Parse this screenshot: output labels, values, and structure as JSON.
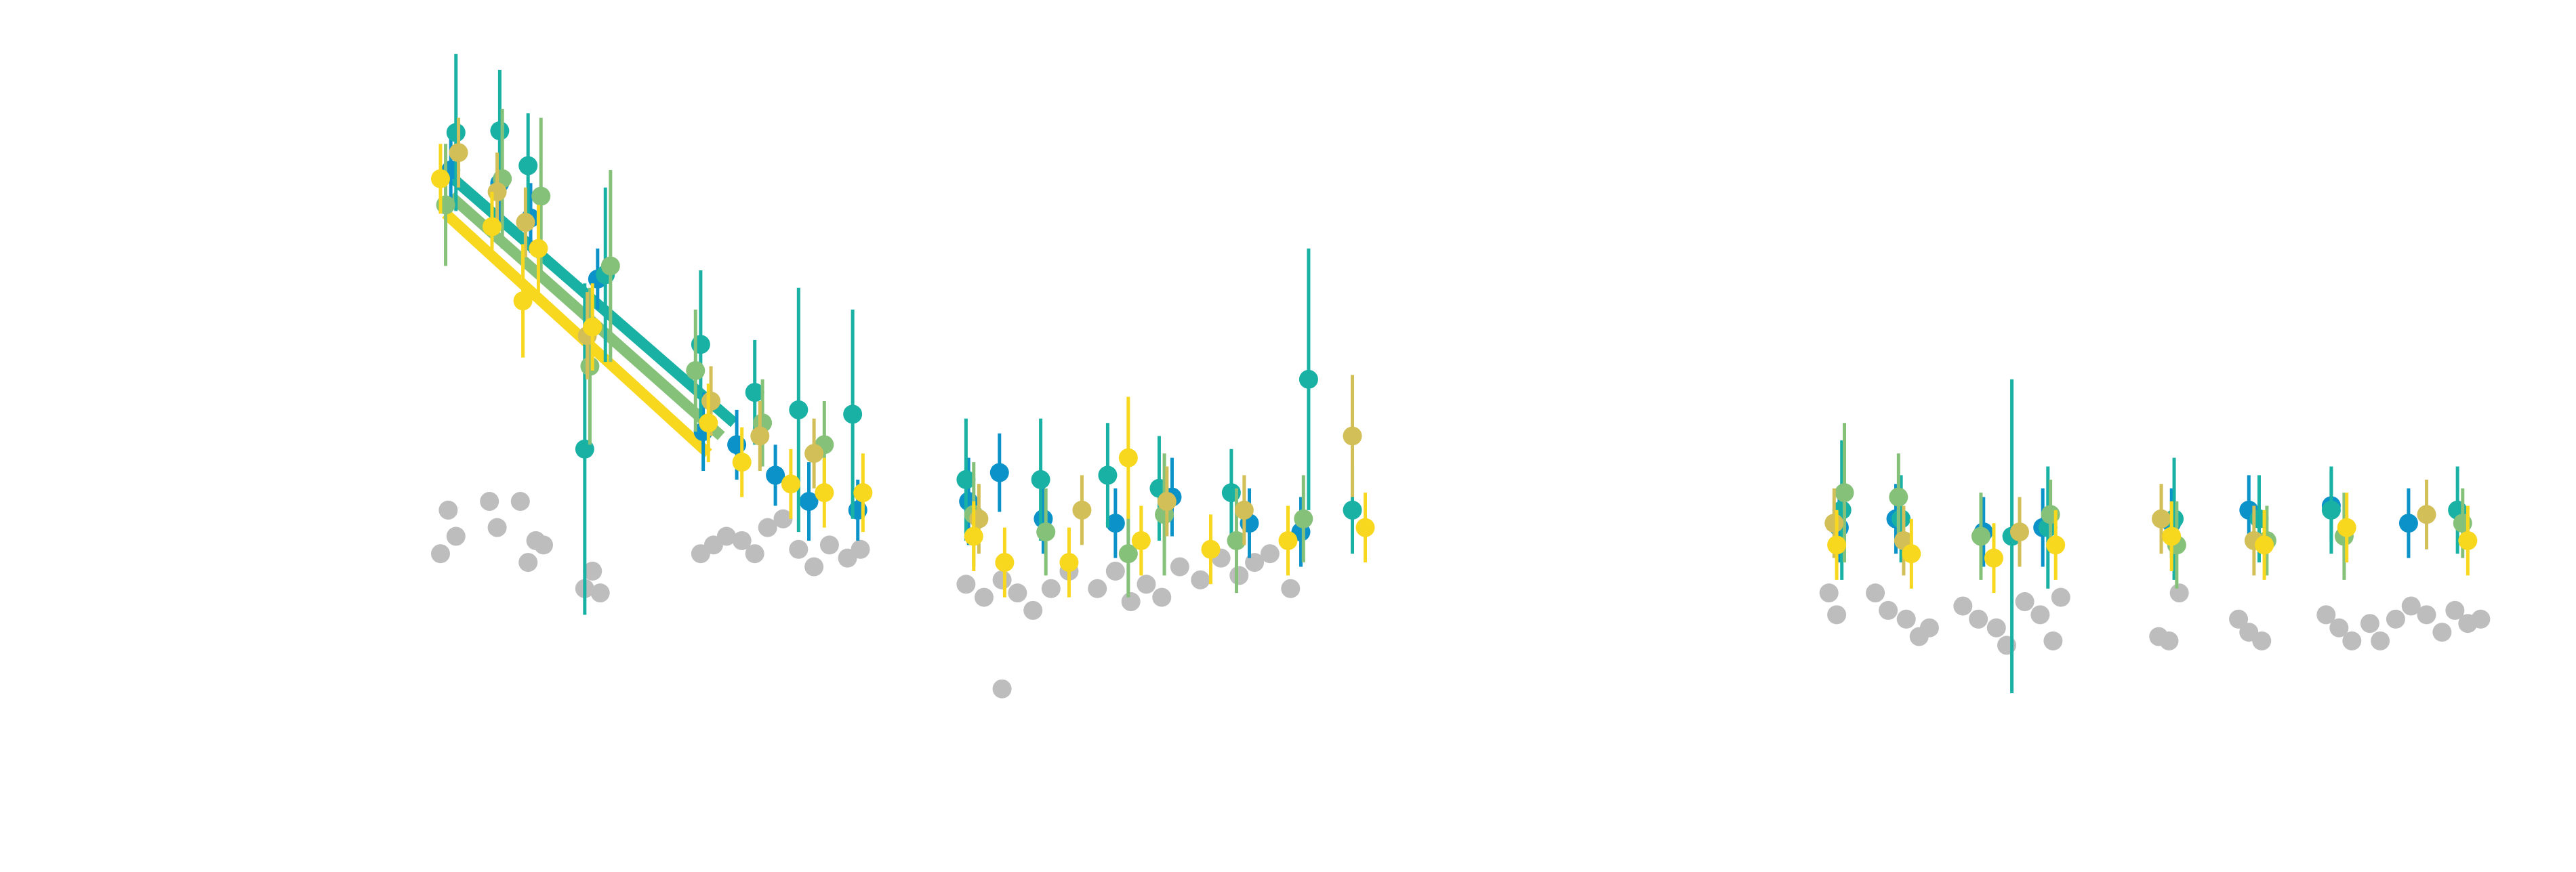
{
  "colors": {
    "background": "#ffffff",
    "excluded": "#bdbdbd",
    "series": [
      "#0a92c9",
      "#1ab1a5",
      "#86c17a",
      "#d2bf58",
      "#f8d81f"
    ]
  },
  "chart_data": {
    "type": "scatter",
    "title": "",
    "xlabel": "",
    "ylabel": "",
    "axes_visible": false,
    "grid": false,
    "legend": "none",
    "xlim": [
      0,
      100
    ],
    "ylim": [
      0,
      100
    ],
    "series": [
      {
        "values": [
          {
            "x": 17.5,
            "y": 80.5,
            "err": 4.0
          },
          {
            "x": 19.4,
            "y": 79.0,
            "err": 5.0
          },
          {
            "x": 20.6,
            "y": 75.0,
            "err": 4.0
          },
          {
            "x": 23.2,
            "y": 68.0,
            "err": 3.5
          },
          {
            "x": 27.3,
            "y": 50.5,
            "err": 4.5
          },
          {
            "x": 28.6,
            "y": 49.0,
            "err": 4.0
          },
          {
            "x": 30.1,
            "y": 45.5,
            "err": 3.5
          },
          {
            "x": 31.4,
            "y": 42.5,
            "err": 4.5
          },
          {
            "x": 33.3,
            "y": 41.5,
            "err": 3.5
          },
          {
            "x": 37.6,
            "y": 42.5,
            "err": 5.0
          },
          {
            "x": 38.8,
            "y": 45.8,
            "err": 4.5
          },
          {
            "x": 40.5,
            "y": 40.5,
            "err": 4.0
          },
          {
            "x": 43.3,
            "y": 40.0,
            "err": 4.0
          },
          {
            "x": 45.5,
            "y": 43.0,
            "err": 4.5
          },
          {
            "x": 48.5,
            "y": 40.0,
            "err": 4.0
          },
          {
            "x": 50.5,
            "y": 39.0,
            "err": 4.0
          },
          {
            "x": 71.4,
            "y": 39.5,
            "err": 4.0
          },
          {
            "x": 73.6,
            "y": 40.5,
            "err": 4.0
          },
          {
            "x": 77.0,
            "y": 39.0,
            "err": 4.0
          },
          {
            "x": 79.3,
            "y": 39.5,
            "err": 4.5
          },
          {
            "x": 84.3,
            "y": 40.0,
            "err": 4.0
          },
          {
            "x": 87.3,
            "y": 41.5,
            "err": 4.0
          },
          {
            "x": 90.5,
            "y": 42.0,
            "err": 4.0
          },
          {
            "x": 93.5,
            "y": 40.0,
            "err": 4.0
          }
        ]
      },
      {
        "values": [
          {
            "x": 17.7,
            "y": 84.8,
            "err": 9.0
          },
          {
            "x": 19.4,
            "y": 85.0,
            "err": 7.0
          },
          {
            "x": 20.5,
            "y": 81.0,
            "err": 6.0
          },
          {
            "x": 22.7,
            "y": 48.5,
            "err": 19.0
          },
          {
            "x": 23.5,
            "y": 68.5,
            "err": 10.0
          },
          {
            "x": 27.2,
            "y": 60.5,
            "err": 8.5
          },
          {
            "x": 29.3,
            "y": 55.0,
            "err": 6.0
          },
          {
            "x": 31.0,
            "y": 53.0,
            "err": 14.0
          },
          {
            "x": 33.1,
            "y": 52.5,
            "err": 12.0
          },
          {
            "x": 37.5,
            "y": 45.0,
            "err": 7.0
          },
          {
            "x": 40.4,
            "y": 45.0,
            "err": 7.0
          },
          {
            "x": 43.0,
            "y": 45.5,
            "err": 6.0
          },
          {
            "x": 45.0,
            "y": 44.0,
            "err": 6.0
          },
          {
            "x": 47.8,
            "y": 43.5,
            "err": 5.0
          },
          {
            "x": 50.8,
            "y": 56.5,
            "err": 15.0
          },
          {
            "x": 52.5,
            "y": 41.5,
            "err": 5.0
          },
          {
            "x": 71.5,
            "y": 41.5,
            "err": 8.0
          },
          {
            "x": 73.8,
            "y": 40.5,
            "err": 5.0
          },
          {
            "x": 78.1,
            "y": 38.5,
            "err": 18.0
          },
          {
            "x": 79.5,
            "y": 39.5,
            "err": 7.0
          },
          {
            "x": 84.4,
            "y": 40.5,
            "err": 7.0
          },
          {
            "x": 87.7,
            "y": 40.5,
            "err": 5.0
          },
          {
            "x": 90.5,
            "y": 41.5,
            "err": 5.0
          },
          {
            "x": 95.4,
            "y": 41.5,
            "err": 5.0
          }
        ]
      },
      {
        "values": [
          {
            "x": 17.3,
            "y": 76.5,
            "err": 7.0
          },
          {
            "x": 19.5,
            "y": 79.5,
            "err": 8.0
          },
          {
            "x": 21.0,
            "y": 77.5,
            "err": 9.0
          },
          {
            "x": 22.9,
            "y": 58.0,
            "err": 9.0
          },
          {
            "x": 23.7,
            "y": 69.5,
            "err": 11.0
          },
          {
            "x": 27.0,
            "y": 57.5,
            "err": 7.0
          },
          {
            "x": 29.6,
            "y": 51.5,
            "err": 5.0
          },
          {
            "x": 32.0,
            "y": 49.0,
            "err": 5.0
          },
          {
            "x": 37.8,
            "y": 41.0,
            "err": 6.0
          },
          {
            "x": 40.6,
            "y": 39.0,
            "err": 5.0
          },
          {
            "x": 43.8,
            "y": 36.5,
            "err": 5.0
          },
          {
            "x": 45.2,
            "y": 41.0,
            "err": 7.0
          },
          {
            "x": 48.0,
            "y": 38.0,
            "err": 6.0
          },
          {
            "x": 50.6,
            "y": 40.5,
            "err": 5.0
          },
          {
            "x": 71.6,
            "y": 43.5,
            "err": 8.0
          },
          {
            "x": 73.7,
            "y": 43.0,
            "err": 5.0
          },
          {
            "x": 76.9,
            "y": 38.5,
            "err": 5.0
          },
          {
            "x": 79.6,
            "y": 41.0,
            "err": 4.0
          },
          {
            "x": 84.5,
            "y": 37.5,
            "err": 5.0
          },
          {
            "x": 88.0,
            "y": 38.0,
            "err": 4.0
          },
          {
            "x": 91.0,
            "y": 38.5,
            "err": 5.0
          },
          {
            "x": 95.6,
            "y": 40.0,
            "err": 4.0
          }
        ]
      },
      {
        "values": [
          {
            "x": 17.8,
            "y": 82.5,
            "err": 4.0
          },
          {
            "x": 19.3,
            "y": 78.0,
            "err": 4.5
          },
          {
            "x": 20.4,
            "y": 74.5,
            "err": 4.0
          },
          {
            "x": 22.8,
            "y": 61.5,
            "err": 5.0
          },
          {
            "x": 27.6,
            "y": 54.0,
            "err": 4.0
          },
          {
            "x": 29.5,
            "y": 50.0,
            "err": 4.0
          },
          {
            "x": 31.6,
            "y": 48.0,
            "err": 4.0
          },
          {
            "x": 38.0,
            "y": 40.5,
            "err": 4.0
          },
          {
            "x": 42.0,
            "y": 41.5,
            "err": 4.0
          },
          {
            "x": 45.3,
            "y": 42.5,
            "err": 4.0
          },
          {
            "x": 48.3,
            "y": 41.5,
            "err": 4.0
          },
          {
            "x": 52.5,
            "y": 50.0,
            "err": 7.0
          },
          {
            "x": 71.2,
            "y": 40.0,
            "err": 4.0
          },
          {
            "x": 73.9,
            "y": 38.0,
            "err": 4.0
          },
          {
            "x": 78.4,
            "y": 39.0,
            "err": 4.0
          },
          {
            "x": 83.9,
            "y": 40.5,
            "err": 4.0
          },
          {
            "x": 87.5,
            "y": 38.0,
            "err": 4.0
          },
          {
            "x": 94.2,
            "y": 41.0,
            "err": 4.0
          }
        ]
      },
      {
        "values": [
          {
            "x": 17.1,
            "y": 79.5,
            "err": 4.0
          },
          {
            "x": 19.1,
            "y": 74.0,
            "err": 4.0
          },
          {
            "x": 20.3,
            "y": 65.5,
            "err": 6.5
          },
          {
            "x": 20.9,
            "y": 71.5,
            "err": 5.0
          },
          {
            "x": 23.0,
            "y": 62.5,
            "err": 5.0
          },
          {
            "x": 27.5,
            "y": 51.5,
            "err": 4.5
          },
          {
            "x": 28.8,
            "y": 47.0,
            "err": 4.0
          },
          {
            "x": 30.7,
            "y": 44.5,
            "err": 4.0
          },
          {
            "x": 32.0,
            "y": 43.5,
            "err": 4.0
          },
          {
            "x": 33.5,
            "y": 43.5,
            "err": 4.5
          },
          {
            "x": 37.8,
            "y": 38.5,
            "err": 4.0
          },
          {
            "x": 39.0,
            "y": 35.5,
            "err": 4.0
          },
          {
            "x": 41.5,
            "y": 35.5,
            "err": 4.0
          },
          {
            "x": 43.8,
            "y": 47.5,
            "err": 7.0
          },
          {
            "x": 44.3,
            "y": 38.0,
            "err": 4.0
          },
          {
            "x": 47.0,
            "y": 37.0,
            "err": 4.0
          },
          {
            "x": 50.0,
            "y": 38.0,
            "err": 4.0
          },
          {
            "x": 53.0,
            "y": 39.5,
            "err": 4.0
          },
          {
            "x": 71.3,
            "y": 37.5,
            "err": 4.0
          },
          {
            "x": 74.2,
            "y": 36.5,
            "err": 4.0
          },
          {
            "x": 77.4,
            "y": 36.0,
            "err": 4.0
          },
          {
            "x": 79.8,
            "y": 37.5,
            "err": 4.0
          },
          {
            "x": 84.3,
            "y": 38.5,
            "err": 4.0
          },
          {
            "x": 87.9,
            "y": 37.5,
            "err": 4.0
          },
          {
            "x": 91.1,
            "y": 39.5,
            "err": 4.0
          },
          {
            "x": 95.8,
            "y": 38.0,
            "err": 4.0
          }
        ]
      }
    ],
    "excluded_points": [
      {
        "x": 17.1,
        "y": 36.5
      },
      {
        "x": 17.4,
        "y": 41.5
      },
      {
        "x": 17.7,
        "y": 38.5
      },
      {
        "x": 19.0,
        "y": 42.5
      },
      {
        "x": 19.3,
        "y": 39.5
      },
      {
        "x": 20.2,
        "y": 42.5
      },
      {
        "x": 20.5,
        "y": 35.5
      },
      {
        "x": 20.8,
        "y": 38.0
      },
      {
        "x": 21.1,
        "y": 37.5
      },
      {
        "x": 22.7,
        "y": 32.5
      },
      {
        "x": 23.0,
        "y": 34.5
      },
      {
        "x": 23.3,
        "y": 32.0
      },
      {
        "x": 27.2,
        "y": 36.5
      },
      {
        "x": 27.7,
        "y": 37.5
      },
      {
        "x": 28.2,
        "y": 38.5
      },
      {
        "x": 28.8,
        "y": 38.0
      },
      {
        "x": 29.3,
        "y": 36.5
      },
      {
        "x": 29.8,
        "y": 39.5
      },
      {
        "x": 30.4,
        "y": 40.5
      },
      {
        "x": 31.0,
        "y": 37.0
      },
      {
        "x": 31.6,
        "y": 35.0
      },
      {
        "x": 32.2,
        "y": 37.5
      },
      {
        "x": 32.9,
        "y": 36.0
      },
      {
        "x": 33.4,
        "y": 37.0
      },
      {
        "x": 37.5,
        "y": 33.0
      },
      {
        "x": 38.2,
        "y": 31.5
      },
      {
        "x": 38.9,
        "y": 33.5
      },
      {
        "x": 39.5,
        "y": 32.0
      },
      {
        "x": 40.1,
        "y": 30.0
      },
      {
        "x": 40.8,
        "y": 32.5
      },
      {
        "x": 41.5,
        "y": 34.5
      },
      {
        "x": 42.6,
        "y": 32.5
      },
      {
        "x": 43.3,
        "y": 34.5
      },
      {
        "x": 43.9,
        "y": 31.0
      },
      {
        "x": 44.5,
        "y": 33.0
      },
      {
        "x": 45.1,
        "y": 31.5
      },
      {
        "x": 45.8,
        "y": 35.0
      },
      {
        "x": 46.6,
        "y": 33.5
      },
      {
        "x": 47.4,
        "y": 36.0
      },
      {
        "x": 48.1,
        "y": 34.0
      },
      {
        "x": 48.7,
        "y": 35.5
      },
      {
        "x": 49.3,
        "y": 36.5
      },
      {
        "x": 50.1,
        "y": 32.5
      },
      {
        "x": 38.9,
        "y": 21.0
      },
      {
        "x": 71.0,
        "y": 32.0
      },
      {
        "x": 71.3,
        "y": 29.5
      },
      {
        "x": 72.8,
        "y": 32.0
      },
      {
        "x": 73.3,
        "y": 30.0
      },
      {
        "x": 74.0,
        "y": 29.0
      },
      {
        "x": 74.5,
        "y": 27.0
      },
      {
        "x": 74.9,
        "y": 28.0
      },
      {
        "x": 76.2,
        "y": 30.5
      },
      {
        "x": 76.8,
        "y": 29.0
      },
      {
        "x": 77.5,
        "y": 28.0
      },
      {
        "x": 77.9,
        "y": 26.0
      },
      {
        "x": 78.6,
        "y": 31.0
      },
      {
        "x": 79.2,
        "y": 29.5
      },
      {
        "x": 79.7,
        "y": 26.5
      },
      {
        "x": 80.0,
        "y": 31.5
      },
      {
        "x": 83.8,
        "y": 27.0
      },
      {
        "x": 84.2,
        "y": 26.5
      },
      {
        "x": 84.6,
        "y": 32.0
      },
      {
        "x": 86.9,
        "y": 29.0
      },
      {
        "x": 87.3,
        "y": 27.5
      },
      {
        "x": 87.8,
        "y": 26.5
      },
      {
        "x": 90.3,
        "y": 29.5
      },
      {
        "x": 90.8,
        "y": 28.0
      },
      {
        "x": 91.3,
        "y": 26.5
      },
      {
        "x": 92.0,
        "y": 28.5
      },
      {
        "x": 92.4,
        "y": 26.5
      },
      {
        "x": 93.0,
        "y": 29.0
      },
      {
        "x": 93.6,
        "y": 30.5
      },
      {
        "x": 94.2,
        "y": 29.5
      },
      {
        "x": 94.8,
        "y": 27.5
      },
      {
        "x": 95.3,
        "y": 30.0
      },
      {
        "x": 95.8,
        "y": 28.5
      },
      {
        "x": 96.3,
        "y": 29.0
      }
    ],
    "fit_lines": [
      {
        "series": 1,
        "x": [
          17.6,
          28.5
        ],
        "y": [
          79.5,
          51.5
        ]
      },
      {
        "series": 2,
        "x": [
          17.5,
          28.0
        ],
        "y": [
          77.5,
          50.0
        ]
      },
      {
        "series": 4,
        "x": [
          17.3,
          27.5
        ],
        "y": [
          75.5,
          48.0
        ]
      }
    ]
  }
}
